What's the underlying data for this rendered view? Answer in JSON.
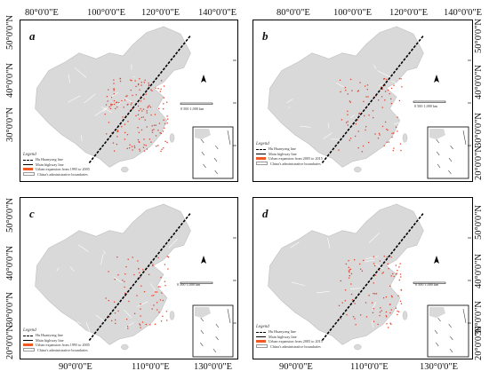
{
  "top_labels": [
    "80°0'0\"E",
    "100°0'0\"E",
    "120°0'0\"E",
    "140°0'0\"E"
  ],
  "bottom_labels": [
    "90°0'0\"E",
    "110°0'0\"E",
    "130°0'0\"E"
  ],
  "left_labels": [
    "50°0'0\"N",
    "40°0'0\"N",
    "30°0'0\"N",
    "20°0'0\"N"
  ],
  "panels": [
    {
      "letter": "a",
      "legend_title": "Legend",
      "scale": "0  500  1,000 km",
      "legend_items": [
        "Hu Huanyong line",
        "Main highway line",
        "Urban expansion from 1995 to 2005",
        "China's administrative boundaries"
      ]
    },
    {
      "letter": "b",
      "legend_title": "Legend",
      "scale": "0    500    1,000 km",
      "legend_items": [
        "Hu Huanyong line",
        "Main highway line",
        "Urban expansion from 2005 to 2015",
        "China's administrative boundaries"
      ]
    },
    {
      "letter": "c",
      "legend_title": "Legend",
      "scale": "0    500    1,000 km",
      "legend_items": [
        "Hu Huanyong line",
        "Main highway line",
        "Urban expansion from 1995 to 2005",
        "China's administrative boundaries"
      ]
    },
    {
      "letter": "d",
      "legend_title": "Legend",
      "scale": "0    500    1,000 km",
      "legend_items": [
        "Hu Huanyong line",
        "Main highway line",
        "Urban expansion from 2005 to 2015",
        "China's administrative boundaries"
      ]
    }
  ],
  "colors": {
    "land": "#d9d9d9",
    "boundary": "#ffffff",
    "urban": "#e8412b",
    "huline": "#000000",
    "legend_urban": "#f15a22"
  }
}
